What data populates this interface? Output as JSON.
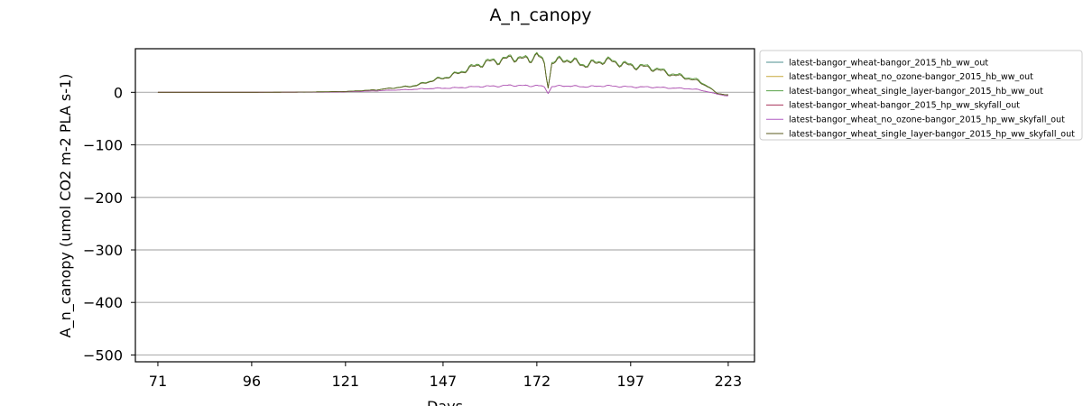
{
  "chart_data": {
    "type": "line",
    "title": "A_n_canopy",
    "xlabel": "Days",
    "ylabel": "A_n_canopy (umol CO2 m-2 PLA s-1)",
    "xlim": [
      65,
      230
    ],
    "ylim": [
      -513,
      83
    ],
    "xticks": [
      71,
      96,
      121,
      147,
      172,
      197,
      223
    ],
    "yticks": [
      0,
      -100,
      -200,
      -300,
      -400,
      -500
    ],
    "ytick_labels": [
      "0",
      "−100",
      "−200",
      "−300",
      "−400",
      "−500"
    ],
    "grid": "horizontal",
    "legend_position": "outside-right",
    "series": [
      {
        "name": "latest-bangor_wheat-bangor_2015_hb_ww_out",
        "color": "#4e8f8f",
        "group": "full",
        "x": [
          71,
          96,
          110,
          121,
          130,
          140,
          147,
          155,
          160,
          165,
          170,
          172,
          174,
          175,
          176,
          180,
          185,
          190,
          195,
          200,
          205,
          210,
          215,
          218,
          220,
          223
        ],
        "y": [
          0,
          0,
          0.5,
          1.5,
          5,
          14,
          28,
          48,
          62,
          66,
          62,
          78,
          55,
          10,
          58,
          62,
          55,
          60,
          56,
          50,
          42,
          33,
          22,
          10,
          -2,
          -5
        ]
      },
      {
        "name": "latest-bangor_wheat_no_ozone-bangor_2015_hb_ww_out",
        "color": "#c7a83a",
        "group": "full",
        "x": [
          71,
          96,
          110,
          121,
          130,
          140,
          147,
          155,
          160,
          165,
          170,
          172,
          174,
          175,
          176,
          180,
          185,
          190,
          195,
          200,
          205,
          210,
          215,
          218,
          220,
          223
        ],
        "y": [
          0,
          0,
          0.5,
          1.5,
          5,
          14,
          28,
          48,
          62,
          66,
          62,
          78,
          55,
          10,
          58,
          62,
          55,
          60,
          56,
          50,
          42,
          33,
          22,
          10,
          -2,
          -5
        ]
      },
      {
        "name": "latest-bangor_wheat_single_layer-bangor_2015_hb_ww_out",
        "color": "#5aa34a",
        "group": "full",
        "x": [
          71,
          96,
          110,
          121,
          130,
          140,
          147,
          155,
          160,
          165,
          170,
          172,
          174,
          175,
          176,
          180,
          185,
          190,
          195,
          200,
          205,
          210,
          215,
          218,
          220,
          223
        ],
        "y": [
          0,
          0,
          0.5,
          1.5,
          5,
          14,
          28,
          48,
          62,
          66,
          62,
          78,
          55,
          10,
          58,
          62,
          55,
          60,
          56,
          50,
          42,
          33,
          22,
          10,
          -2,
          -5
        ]
      },
      {
        "name": "latest-bangor_wheat-bangor_2015_hp_ww_skyfall_out",
        "color": "#a8325a",
        "group": "low",
        "x": [
          71,
          96,
          110,
          121,
          130,
          140,
          147,
          155,
          160,
          165,
          170,
          172,
          174,
          175,
          176,
          180,
          185,
          190,
          195,
          200,
          205,
          210,
          215,
          220,
          223
        ],
        "y": [
          0,
          0,
          0.3,
          1,
          3,
          6,
          8,
          10,
          12,
          13,
          12,
          14,
          10,
          -2,
          11,
          12,
          11,
          12,
          11,
          10,
          9,
          8,
          5,
          -3,
          -7
        ]
      },
      {
        "name": "latest-bangor_wheat_no_ozone-bangor_2015_hp_ww_skyfall_out",
        "color": "#b05cc4",
        "group": "low",
        "x": [
          71,
          96,
          110,
          121,
          130,
          140,
          147,
          155,
          160,
          165,
          170,
          172,
          174,
          175,
          176,
          180,
          185,
          190,
          195,
          200,
          205,
          210,
          215,
          220,
          223
        ],
        "y": [
          0,
          0,
          0.3,
          1,
          3,
          6,
          8,
          10,
          12,
          13,
          12,
          14,
          10,
          -2,
          11,
          12,
          11,
          12,
          11,
          10,
          9,
          8,
          5,
          -3,
          -7
        ]
      },
      {
        "name": "latest-bangor_wheat_single_layer-bangor_2015_hp_ww_skyfall_out",
        "color": "#5a5a1e",
        "group": "full",
        "x": [
          71,
          96,
          110,
          121,
          130,
          140,
          147,
          155,
          160,
          165,
          170,
          172,
          174,
          175,
          176,
          180,
          185,
          190,
          195,
          200,
          205,
          210,
          215,
          218,
          220,
          223
        ],
        "y": [
          0,
          0,
          0.5,
          1.5,
          5,
          13,
          27,
          46,
          60,
          64,
          60,
          76,
          53,
          9,
          56,
          60,
          53,
          58,
          54,
          48,
          40,
          31,
          20,
          9,
          -2,
          -5
        ]
      }
    ]
  }
}
